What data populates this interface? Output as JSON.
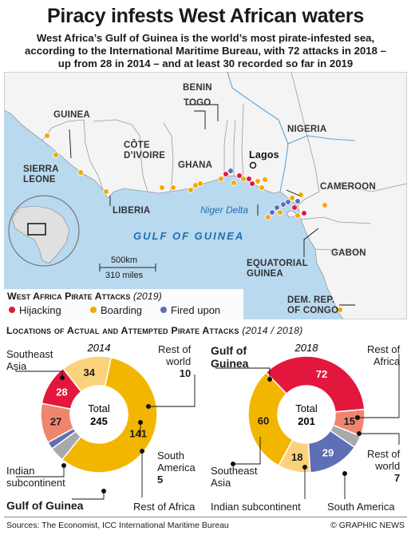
{
  "header": {
    "title": "Piracy infests West African waters",
    "intro_lines": [
      "West Africa’s Gulf of Guinea is the world’s most pirate-infested sea,",
      "according to the International Maritime Bureau, with 72 attacks in 2018 –",
      "up from 28 in 2014 – and at least 30 recorded so far in 2019"
    ]
  },
  "map": {
    "countries": {
      "guinea": "GUINEA",
      "sierra_leone_1": "SIERRA",
      "sierra_leone_2": "LEONE",
      "liberia": "LIBERIA",
      "cote_1": "CÔTE",
      "cote_2": "D’IVOIRE",
      "ghana": "GHANA",
      "togo": "TOGO",
      "benin": "BENIN",
      "nigeria": "NIGERIA",
      "cameroon": "CAMEROON",
      "gabon": "GABON",
      "eq_guinea_1": "EQUATORIAL",
      "eq_guinea_2": "GUINEA",
      "drc_1": "DEM. REP.",
      "drc_2": "OF CONGO"
    },
    "city": "Lagos",
    "delta": "Niger Delta",
    "sea": "GULF OF GUINEA",
    "scale_km": "500km",
    "scale_miles": "310 miles",
    "colors": {
      "hijacking": "#e3173e",
      "boarding": "#f2a900",
      "fired_upon": "#5e6fb5",
      "sea": "#b9d9ef",
      "land": "#f4f4f4"
    }
  },
  "legend": {
    "title": "West Africa Pirate Attacks",
    "year": "(2019)",
    "items": [
      "Hijacking",
      "Boarding",
      "Fired upon"
    ]
  },
  "section": {
    "title": "Locations of Actual and Attempted Pirate Attacks",
    "years": "(2014 / 2018)"
  },
  "chart_data": [
    {
      "type": "pie",
      "title": "2014",
      "center_label": "Total",
      "total": 245,
      "slices": [
        {
          "label": "Southeast Asia",
          "value": 141,
          "color": "#f2b600"
        },
        {
          "label": "Rest of world",
          "value": 10,
          "color": "#a7a9ac"
        },
        {
          "label": "South America",
          "value": 5,
          "color": "#5e6fb5"
        },
        {
          "label": "Rest of Africa",
          "value": 27,
          "color": "#f0856e"
        },
        {
          "label": "Gulf of Guinea",
          "value": 28,
          "color": "#e3173e"
        },
        {
          "label": "Indian subcontinent",
          "value": 34,
          "color": "#fbd27c"
        }
      ]
    },
    {
      "type": "pie",
      "title": "2018",
      "center_label": "Total",
      "total": 201,
      "slices": [
        {
          "label": "Gulf of Guinea",
          "value": 72,
          "color": "#e3173e"
        },
        {
          "label": "Rest of Africa",
          "value": 15,
          "color": "#f0856e"
        },
        {
          "label": "Rest of world",
          "value": 7,
          "color": "#a7a9ac"
        },
        {
          "label": "South America",
          "value": 29,
          "color": "#5e6fb5"
        },
        {
          "label": "Indian subcontinent",
          "value": 18,
          "color": "#fbd27c"
        },
        {
          "label": "Southeast Asia",
          "value": 60,
          "color": "#f2b600"
        }
      ]
    }
  ],
  "callouts": {
    "c2014": {
      "southeast_asia_1": "Southeast",
      "southeast_asia_2": "Asia",
      "rest_world_1": "Rest of",
      "rest_world_2": "world",
      "rest_world_val": "10",
      "south_america_1": "South",
      "south_america_2": "America",
      "south_america_val": "5",
      "indian_1": "Indian",
      "indian_2": "subcontinent",
      "gulf": "Gulf of Guinea",
      "rest_africa": "Rest of Africa"
    },
    "c2018": {
      "gulf_1": "Gulf of",
      "gulf_2": "Guinea",
      "rest_africa_1": "Rest of",
      "rest_africa_2": "Africa",
      "rest_world_1": "Rest of",
      "rest_world_2": "world",
      "rest_world_val": "7",
      "southeast_1": "Southeast",
      "southeast_2": "Asia",
      "indian": "Indian subcontinent",
      "south_america": "South America"
    }
  },
  "footer": {
    "sources": "Sources: The Economist, ICC International Maritime Bureau",
    "credit": "© GRAPHIC NEWS"
  }
}
